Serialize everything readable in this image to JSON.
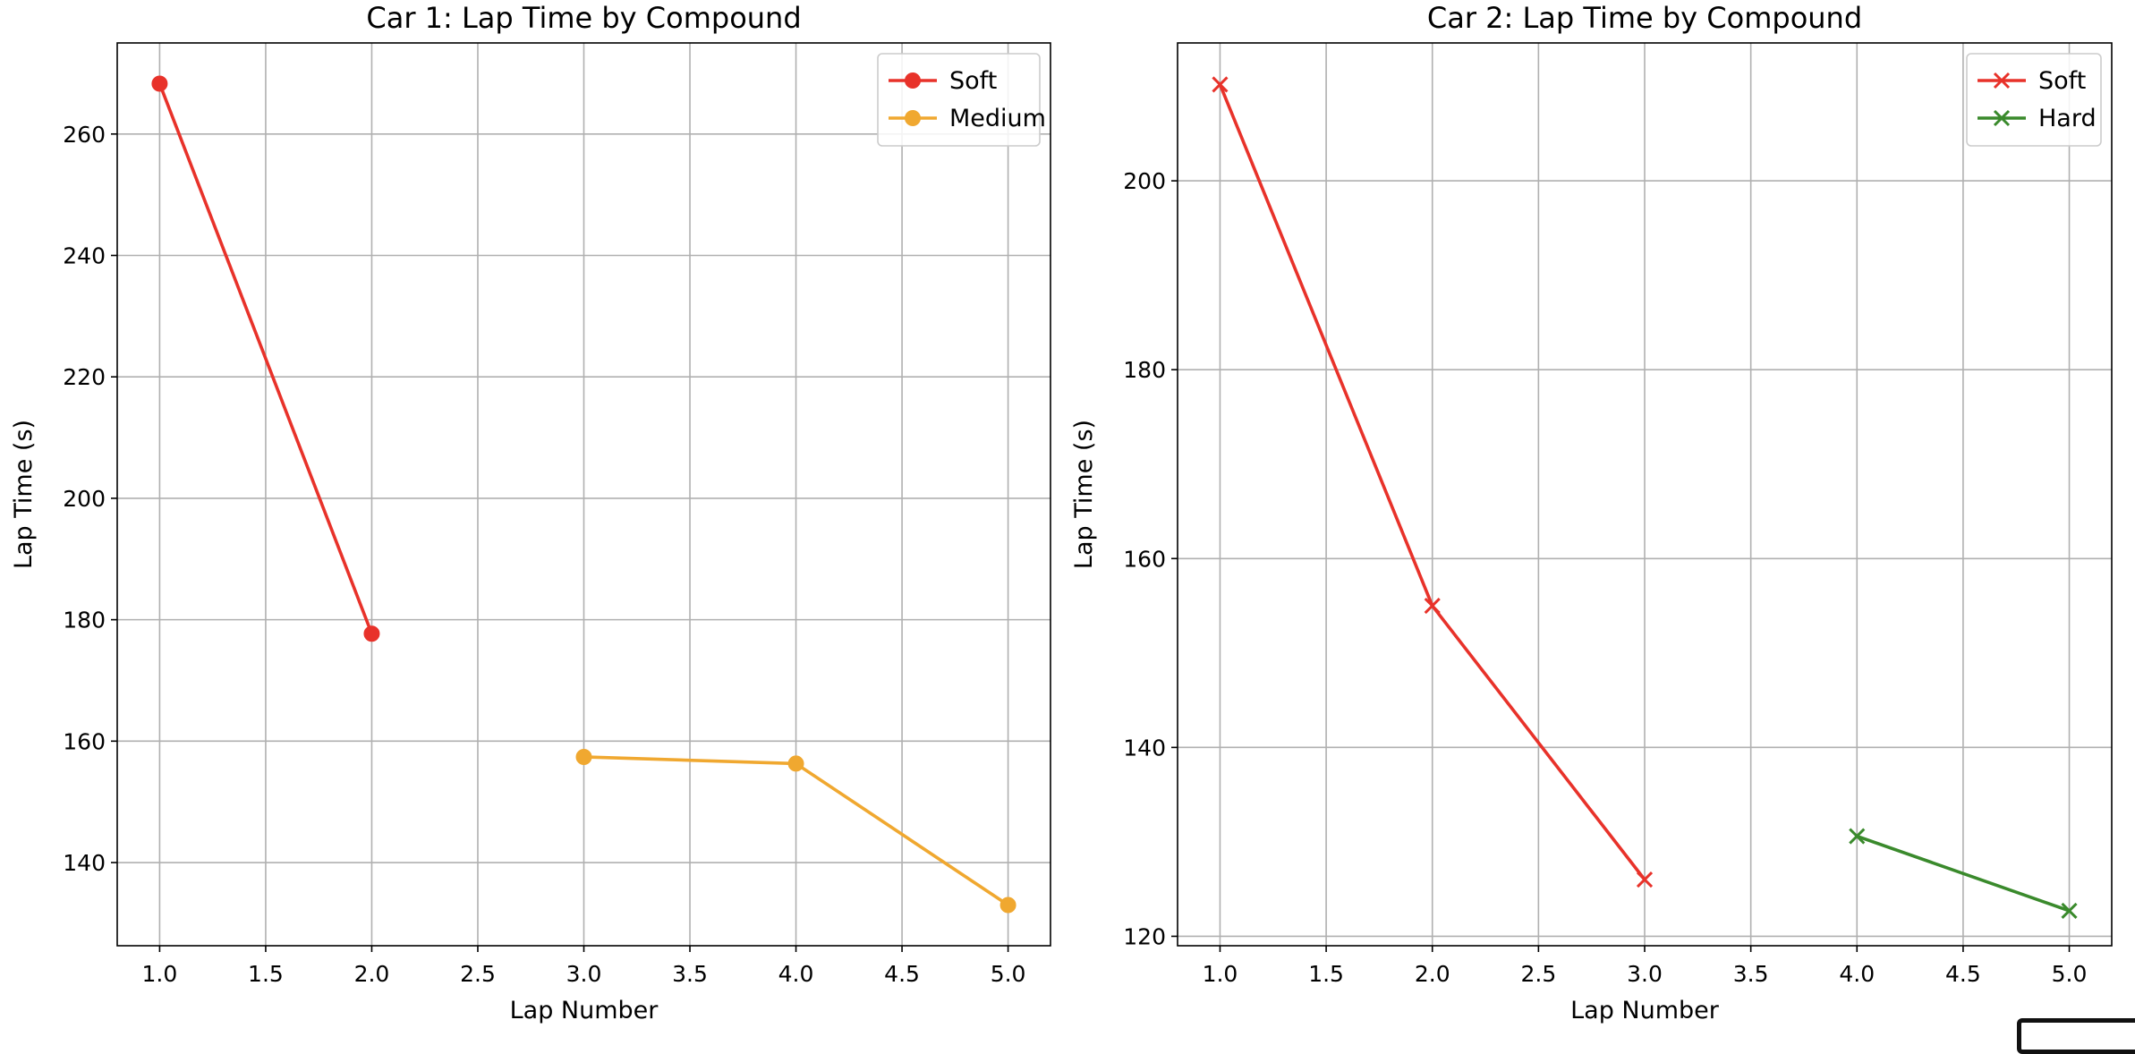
{
  "figure": {
    "background": "#ffffff",
    "grid_color": "#b0b0b0"
  },
  "chart_data": [
    {
      "type": "line",
      "title": "Car 1: Lap Time by Compound",
      "xlabel": "Lap Number",
      "ylabel": "Lap Time (s)",
      "xlim": [
        0.8,
        5.2
      ],
      "ylim": [
        126.3,
        275.0
      ],
      "xticks": [
        1.0,
        1.5,
        2.0,
        2.5,
        3.0,
        3.5,
        4.0,
        4.5,
        5.0
      ],
      "xtick_labels": [
        "1.0",
        "1.5",
        "2.0",
        "2.5",
        "3.0",
        "3.5",
        "4.0",
        "4.5",
        "5.0"
      ],
      "yticks": [
        140,
        160,
        180,
        200,
        220,
        240,
        260
      ],
      "ytick_labels": [
        "140",
        "160",
        "180",
        "200",
        "220",
        "240",
        "260"
      ],
      "grid": true,
      "legend": "top-right",
      "series": [
        {
          "name": "Soft",
          "color": "#e8322a",
          "marker": "circle",
          "x": [
            1,
            2
          ],
          "y": [
            268.3,
            177.7
          ]
        },
        {
          "name": "Medium",
          "color": "#f0a830",
          "marker": "circle",
          "x": [
            3,
            4,
            5
          ],
          "y": [
            157.4,
            156.3,
            133.0
          ]
        }
      ]
    },
    {
      "type": "line",
      "title": "Car 2: Lap Time by Compound",
      "xlabel": "Lap Number",
      "ylabel": "Lap Time (s)",
      "xlim": [
        0.8,
        5.2
      ],
      "ylim": [
        119.0,
        214.6
      ],
      "xticks": [
        1.0,
        1.5,
        2.0,
        2.5,
        3.0,
        3.5,
        4.0,
        4.5,
        5.0
      ],
      "xtick_labels": [
        "1.0",
        "1.5",
        "2.0",
        "2.5",
        "3.0",
        "3.5",
        "4.0",
        "4.5",
        "5.0"
      ],
      "yticks": [
        120,
        140,
        160,
        180,
        200
      ],
      "ytick_labels": [
        "120",
        "140",
        "160",
        "180",
        "200"
      ],
      "grid": true,
      "legend": "top-right",
      "series": [
        {
          "name": "Soft",
          "color": "#e8322a",
          "marker": "x",
          "x": [
            1,
            2,
            3
          ],
          "y": [
            210.2,
            155.0,
            126.0
          ]
        },
        {
          "name": "Hard",
          "color": "#3a8a2c",
          "marker": "x",
          "x": [
            4,
            5
          ],
          "y": [
            130.6,
            122.7
          ]
        }
      ]
    }
  ]
}
